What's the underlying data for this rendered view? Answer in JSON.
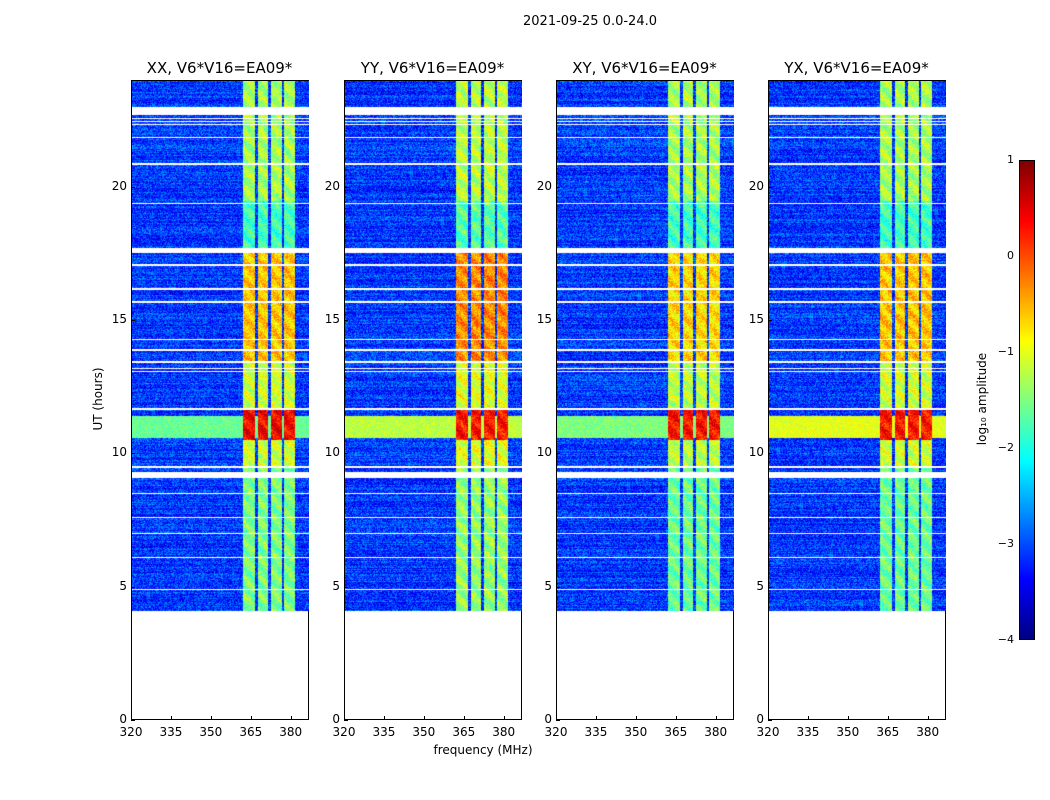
{
  "chart_data": {
    "type": "heatmap",
    "title": "2021-09-25 0.0-24.0",
    "xlabel": "frequency (MHz)",
    "ylabel": "UT (hours)",
    "xlim": [
      320,
      386.5
    ],
    "ylim": [
      0,
      24
    ],
    "xticks": [
      320,
      335,
      350,
      365,
      380
    ],
    "yticks": [
      0,
      5,
      10,
      15,
      20
    ],
    "colorbar": {
      "label": "log₁₀ amplitude",
      "range": [
        -4,
        1
      ],
      "ticks": [
        1,
        0,
        -1,
        -2,
        -3,
        -4
      ],
      "tick_labels": [
        "1",
        "0",
        "−1",
        "−2",
        "−3",
        "−4"
      ],
      "colormap": "jet"
    },
    "data_time_range": [
      4.1,
      24.0
    ],
    "background_level": -3.1,
    "rfi_channels_mhz": [
      [
        361.5,
        366
      ],
      [
        367,
        371
      ],
      [
        372,
        376
      ],
      [
        377,
        381
      ]
    ],
    "flagged_time_ranges": [
      [
        22.75,
        23.05
      ],
      [
        22.6,
        22.63
      ],
      [
        22.48,
        22.51
      ],
      [
        22.38,
        22.41
      ],
      [
        17.55,
        17.72
      ],
      [
        13.4,
        13.48
      ],
      [
        11.66,
        11.72
      ],
      [
        9.46,
        9.52
      ],
      [
        9.1,
        9.3
      ]
    ],
    "flagged_lines": [
      21.9,
      20.9,
      19.4,
      17.1,
      16.2,
      15.7,
      14.3,
      13.9,
      13.2,
      13.1,
      8.5,
      7.6,
      7.0,
      6.1,
      4.9
    ],
    "broadband_rfi_time": [
      10.6,
      11.4
    ],
    "panels": [
      {
        "name": "XX, V6*V16=EA09*",
        "rfi_levels": {
          "t20_23": -1.3,
          "t13_17": -0.6,
          "t9_11": -1.1,
          "t10_11_peak": 0.4,
          "t4_9": -1.5
        },
        "broadband_level": -1.6
      },
      {
        "name": "YY, V6*V16=EA09*",
        "rfi_levels": {
          "t20_23": -1.2,
          "t13_17": -0.3,
          "t9_11": -1.0,
          "t10_11_peak": 0.3,
          "t4_9": -1.4
        },
        "broadband_level": -1.2
      },
      {
        "name": "XY, V6*V16=EA09*",
        "rfi_levels": {
          "t20_23": -1.3,
          "t13_17": -0.7,
          "t9_11": -1.2,
          "t10_11_peak": 0.3,
          "t4_9": -1.6
        },
        "broadband_level": -1.5
      },
      {
        "name": "YX, V6*V16=EA09*",
        "rfi_levels": {
          "t20_23": -1.3,
          "t13_17": -0.6,
          "t9_11": -1.1,
          "t10_11_peak": 0.3,
          "t4_9": -1.6
        },
        "broadband_level": -1.0
      }
    ]
  }
}
